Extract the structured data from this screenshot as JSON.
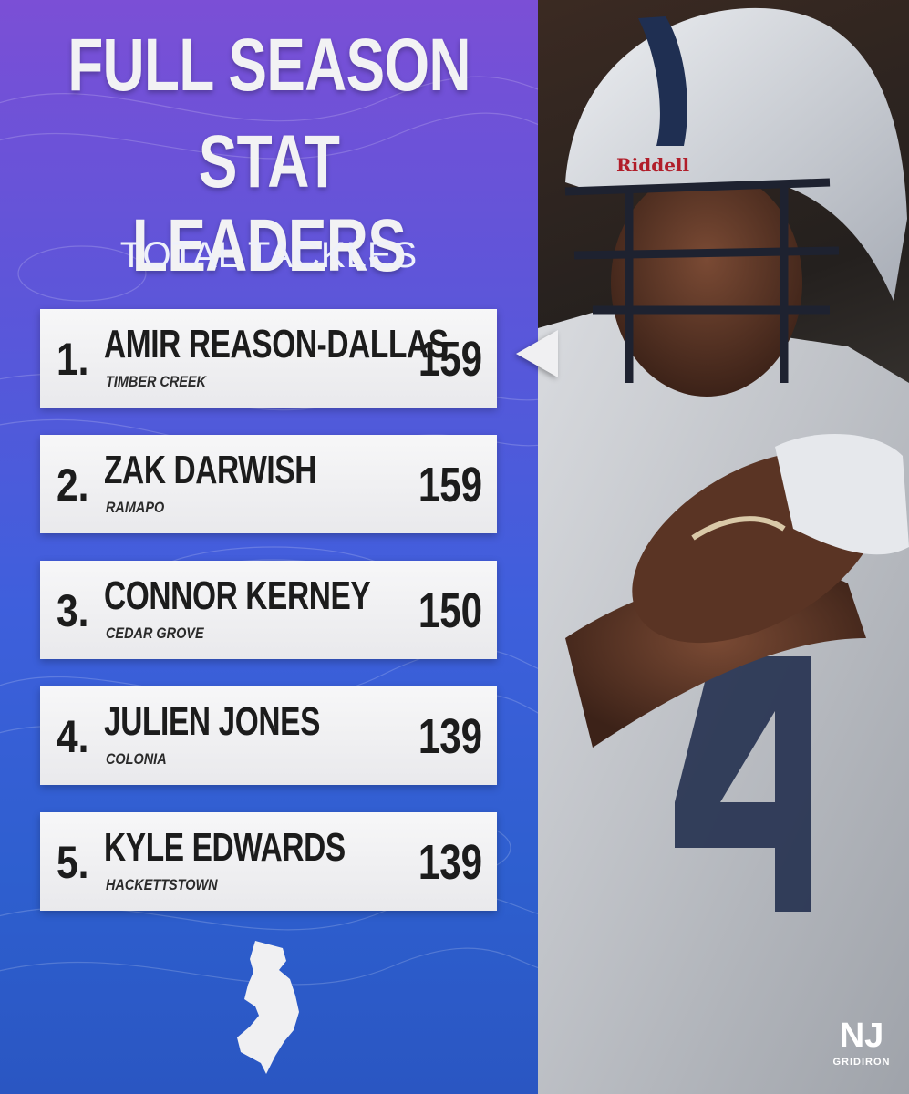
{
  "header": {
    "title_line1": "FULL SEASON",
    "title_line2": "STAT LEADERS",
    "category": "TOTAL TACKLES"
  },
  "leaders": [
    {
      "rank": "1.",
      "name": "AMIR REASON-DALLAS",
      "school": "TIMBER CREEK",
      "value": "159"
    },
    {
      "rank": "2.",
      "name": "ZAK DARWISH",
      "school": "RAMAPO",
      "value": "159"
    },
    {
      "rank": "3.",
      "name": "CONNOR KERNEY",
      "school": "CEDAR GROVE",
      "value": "150"
    },
    {
      "rank": "4.",
      "name": "JULIEN JONES",
      "school": "COLONIA",
      "value": "139"
    },
    {
      "rank": "5.",
      "name": "KYLE EDWARDS",
      "school": "HACKETTSTOWN",
      "value": "139"
    }
  ],
  "photo": {
    "helmet_brand": "Riddell",
    "jersey_number": "4"
  },
  "brand": {
    "logo_mark": "NJ",
    "logo_text": "GRIDIRON"
  },
  "colors": {
    "gradient_top": "#7b4fd6",
    "gradient_bottom": "#2a56c2",
    "card": "#f2f2f4",
    "text_dark": "#1c1c1c"
  },
  "icons": [
    "new-jersey-state-icon",
    "nj-gridiron-logo",
    "row-pointer-icon"
  ]
}
